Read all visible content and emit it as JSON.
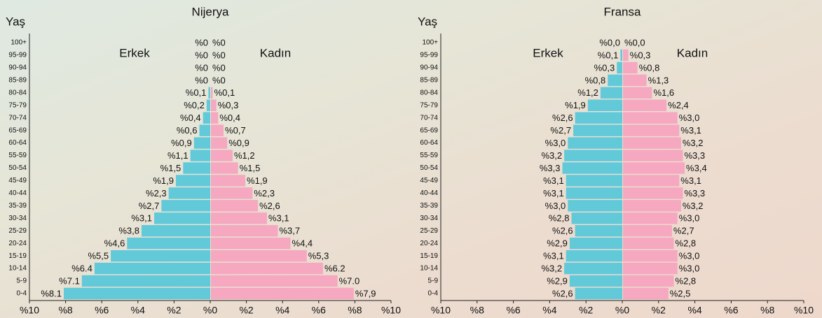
{
  "chart_data": [
    {
      "type": "population-pyramid",
      "title": "Nijerya",
      "y_label": "Yaş",
      "categories": [
        "0-4",
        "5-9",
        "10-14",
        "15-19",
        "20-24",
        "25-29",
        "30-34",
        "35-39",
        "40-44",
        "45-49",
        "50-54",
        "55-59",
        "60-64",
        "65-69",
        "70-74",
        "75-79",
        "80-84",
        "85-89",
        "90-94",
        "95-99",
        "100+"
      ],
      "series": [
        {
          "name": "Erkek",
          "side": "left",
          "color": "#62c9d9",
          "values": [
            8.1,
            7.1,
            6.4,
            5.5,
            4.6,
            3.8,
            3.1,
            2.7,
            2.3,
            1.9,
            1.5,
            1.1,
            0.9,
            0.6,
            0.4,
            0.2,
            0.1,
            0,
            0,
            0,
            0
          ],
          "value_labels": [
            "%8.1",
            "%7.1",
            "%6.4",
            "%5,5",
            "%4,6",
            "%3,8",
            "%3,1",
            "%2,7",
            "%2,3",
            "%1,9",
            "%1,5",
            "%1,1",
            "%0,9",
            "%0,6",
            "%0,4",
            "%0,2",
            "%0,1",
            "%0",
            "%0",
            "%0",
            "%0"
          ]
        },
        {
          "name": "Kadın",
          "side": "right",
          "color": "#f5a8c0",
          "values": [
            7.9,
            7.0,
            6.2,
            5.3,
            4.4,
            3.7,
            3.1,
            2.6,
            2.3,
            1.9,
            1.5,
            1.2,
            0.9,
            0.7,
            0.4,
            0.3,
            0.1,
            0,
            0,
            0,
            0
          ],
          "value_labels": [
            "%7,9",
            "%7.0",
            "%6.2",
            "%5,3",
            "%4,4",
            "%3,7",
            "%3,1",
            "%2,6",
            "%2,3",
            "%1,9",
            "%1,5",
            "%1,2",
            "%0,9",
            "%0,7",
            "%0,4",
            "%0,3",
            "%0,1",
            "%0",
            "%0",
            "%0",
            "%0"
          ]
        }
      ],
      "xlim": [
        0,
        10
      ],
      "left_xticks": [
        {
          "value": 10,
          "label": "%10"
        },
        {
          "value": 8,
          "label": "%8"
        },
        {
          "value": 6,
          "label": "%6"
        },
        {
          "value": 4,
          "label": "%4"
        },
        {
          "value": 2,
          "label": "%2"
        }
      ],
      "right_xticks": [
        {
          "value": 0,
          "label": "%0"
        },
        {
          "value": 2,
          "label": "%2"
        },
        {
          "value": 4,
          "label": "%4"
        },
        {
          "value": 6,
          "label": "%6"
        },
        {
          "value": 8,
          "label": "%8"
        },
        {
          "value": 10,
          "label": "%10"
        }
      ]
    },
    {
      "type": "population-pyramid",
      "title": "Fransa",
      "y_label": "Yaş",
      "categories": [
        "0-4",
        "5-9",
        "10-14",
        "15-19",
        "20-24",
        "25-29",
        "30-34",
        "35-39",
        "40-44",
        "45-49",
        "50-54",
        "55-59",
        "60-64",
        "65-69",
        "70-74",
        "75-79",
        "80-84",
        "85-89",
        "90-94",
        "95-99",
        "100+"
      ],
      "series": [
        {
          "name": "Erkek",
          "side": "left",
          "color": "#62c9d9",
          "values": [
            2.6,
            2.9,
            3.2,
            3.1,
            2.9,
            2.6,
            2.8,
            3.0,
            3.1,
            3.1,
            3.3,
            3.2,
            3.0,
            2.7,
            2.6,
            1.9,
            1.2,
            0.8,
            0.3,
            0.1,
            0.0
          ],
          "value_labels": [
            "%2,6",
            "%2,9",
            "%3,2",
            "%3,1",
            "%2,9",
            "%2,6",
            "%2,8",
            "%3,0",
            "%3,1",
            "%3,1",
            "%3,3",
            "%3,2",
            "%3,0",
            "%2,7",
            "%2,6",
            "%1,9",
            "%1,2",
            "%0,8",
            "%0,3",
            "%0,1",
            "%0,0"
          ]
        },
        {
          "name": "Kadın",
          "side": "right",
          "color": "#f5a8c0",
          "values": [
            2.5,
            2.8,
            3.0,
            3.0,
            2.8,
            2.7,
            3.0,
            3.2,
            3.3,
            3.1,
            3.4,
            3.3,
            3.2,
            3.1,
            3.0,
            2.4,
            1.6,
            1.3,
            0.8,
            0.3,
            0.0
          ],
          "value_labels": [
            "%2,5",
            "%2,8",
            "%3,0",
            "%3,0",
            "%2,8",
            "%2,7",
            "%3,0",
            "%3,2",
            "%3,3",
            "%3,1",
            "%3,4",
            "%3,3",
            "%3,2",
            "%3,1",
            "%3,0",
            "%2,4",
            "%1,6",
            "%1,3",
            "%0,8",
            "%0,3",
            "%0,0"
          ]
        }
      ],
      "xlim": [
        0,
        10
      ],
      "left_xticks": [
        {
          "value": 10,
          "label": "%10"
        },
        {
          "value": 8,
          "label": "%8"
        },
        {
          "value": 6,
          "label": "%6"
        },
        {
          "value": 4,
          "label": "%4"
        },
        {
          "value": 2,
          "label": "%2"
        }
      ],
      "right_xticks": [
        {
          "value": 0,
          "label": "%0"
        },
        {
          "value": 2,
          "label": "%2"
        },
        {
          "value": 4,
          "label": "%4"
        },
        {
          "value": 6,
          "label": "%6"
        },
        {
          "value": 8,
          "label": "%8"
        },
        {
          "value": 10,
          "label": "%10"
        }
      ]
    }
  ]
}
